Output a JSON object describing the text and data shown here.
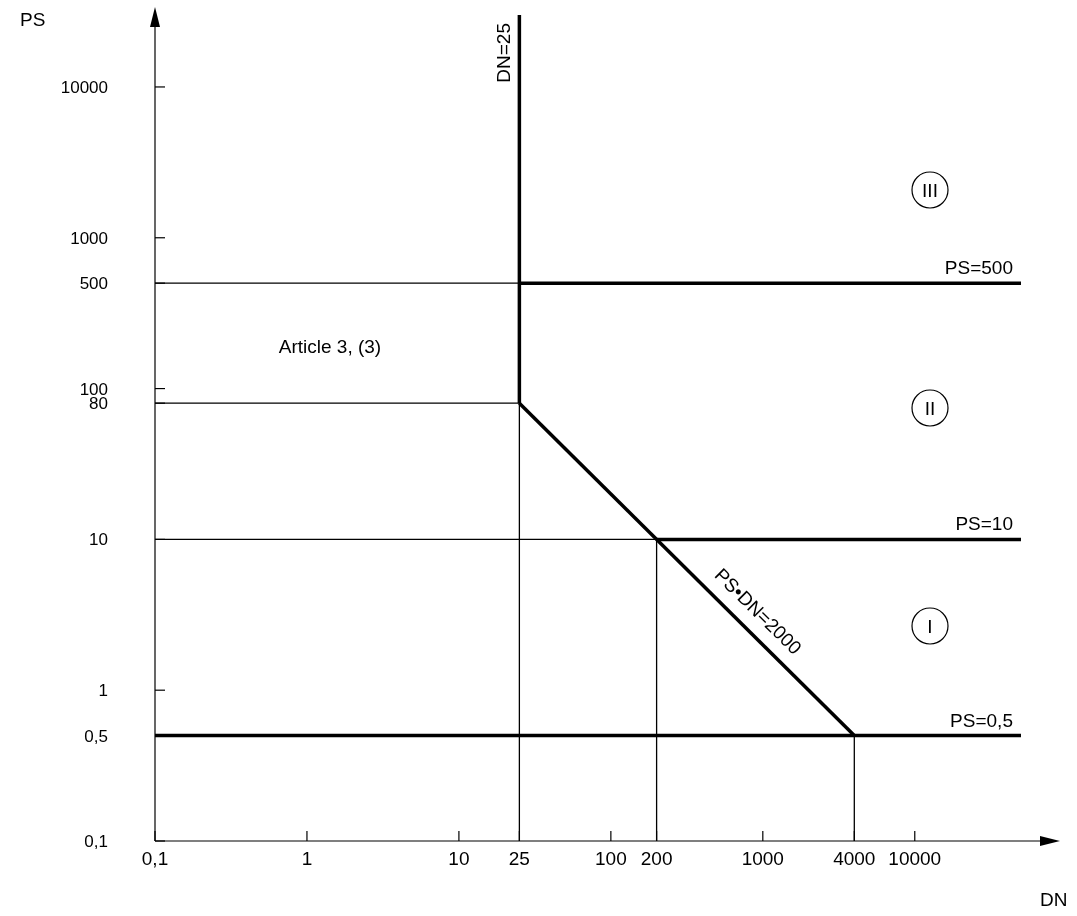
{
  "chart_data": {
    "type": "line",
    "xlabel": "DN",
    "ylabel": "PS",
    "log": "xy",
    "xlim": [
      0.1,
      80000
    ],
    "ylim": [
      0.1,
      30000
    ],
    "xticks": [
      {
        "value": 0.1,
        "label": "0,1"
      },
      1,
      10,
      25,
      100,
      200,
      1000,
      4000,
      10000
    ],
    "yticks": [
      {
        "value": 0.1,
        "label": "0,1"
      },
      {
        "value": 0.5,
        "label": "0,5"
      },
      1,
      10,
      80,
      100,
      500,
      1000,
      10000
    ],
    "series": [
      {
        "name": "DN=25",
        "color": "#000000",
        "x": [
          25,
          25
        ],
        "values": [
          80,
          30000
        ]
      },
      {
        "name": "PS=500",
        "color": "#000000",
        "x": [
          25,
          50000
        ],
        "values": [
          500,
          500
        ]
      },
      {
        "name": "PS•DN=2000",
        "color": "#000000",
        "x": [
          25,
          4000
        ],
        "values": [
          80,
          0.5
        ]
      },
      {
        "name": "PS=10",
        "color": "#000000",
        "x": [
          200,
          50000
        ],
        "values": [
          10,
          10
        ]
      },
      {
        "name": "PS=0,5",
        "color": "#000000",
        "x": [
          0.1,
          50000
        ],
        "values": [
          0.5,
          0.5
        ]
      },
      {
        "color": "#000000",
        "x": [
          0.1,
          25
        ],
        "values": [
          500,
          500
        ]
      },
      {
        "color": "#000000",
        "x": [
          0.1,
          25,
          25
        ],
        "values": [
          80,
          80,
          0.1
        ]
      },
      {
        "color": "#000000",
        "x": [
          0.1,
          200,
          200
        ],
        "values": [
          10,
          10,
          0.1
        ]
      },
      {
        "color": "#000000",
        "x": [
          4000,
          4000
        ],
        "values": [
          0.1,
          0.5
        ]
      }
    ],
    "annotations": [
      "Article 3, (3)",
      "III",
      "II",
      "I"
    ]
  }
}
